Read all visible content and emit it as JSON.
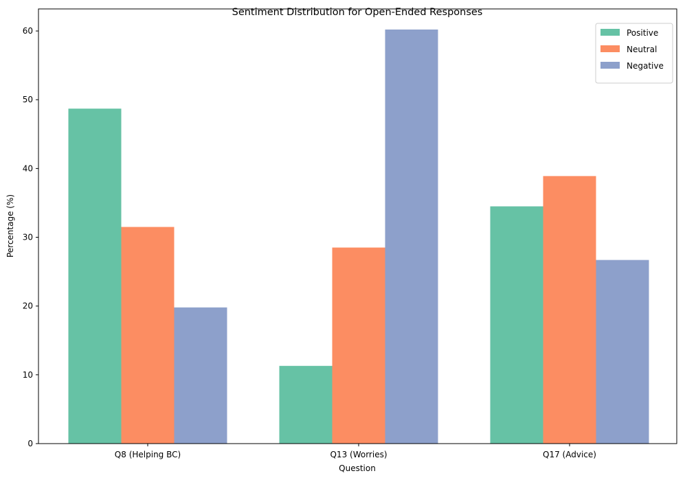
{
  "chart_data": {
    "type": "bar",
    "title": "Sentiment Distribution for Open-Ended Responses",
    "xlabel": "Question",
    "ylabel": "Percentage (%)",
    "categories": [
      "Q8 (Helping BC)",
      "Q13 (Worries)",
      "Q17 (Advice)"
    ],
    "series": [
      {
        "name": "Positive",
        "color": "#66c2a5",
        "values": [
          48.7,
          11.3,
          34.5
        ]
      },
      {
        "name": "Neutral",
        "color": "#fc8d62",
        "values": [
          31.5,
          28.5,
          38.9
        ]
      },
      {
        "name": "Negative",
        "color": "#8da0cb",
        "values": [
          19.8,
          60.2,
          26.7
        ]
      }
    ],
    "ylim": [
      0,
      63.2
    ],
    "yticks": [
      0,
      10,
      20,
      30,
      40,
      50,
      60
    ],
    "grid": false,
    "legend": "top-right"
  }
}
